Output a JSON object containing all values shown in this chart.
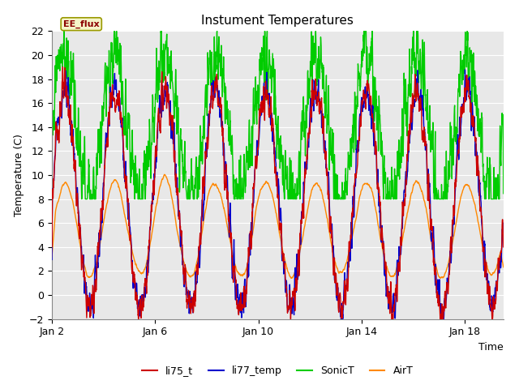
{
  "title": "Instument Temperatures",
  "xlabel": "Time",
  "ylabel": "Temperature (C)",
  "ylim": [
    -2,
    22
  ],
  "xlim_days": [
    2,
    19.5
  ],
  "plot_bg_color": "#e8e8e8",
  "fig_bg": "#ffffff",
  "line_colors": {
    "li75_t": "#cc0000",
    "li77_temp": "#0000cc",
    "SonicT": "#00cc00",
    "AirT": "#ff8800"
  },
  "annotation_text": "EE_flux",
  "x_ticks": [
    2,
    6,
    10,
    14,
    18
  ],
  "x_tick_labels": [
    "Jan 2",
    "Jan 6",
    "Jan 10",
    "Jan 14",
    "Jan 18"
  ],
  "yticks": [
    -2,
    0,
    2,
    4,
    6,
    8,
    10,
    12,
    14,
    16,
    18,
    20,
    22
  ],
  "grid_color": "#ffffff",
  "lw": 1.0,
  "title_fontsize": 11,
  "label_fontsize": 9,
  "tick_fontsize": 9,
  "legend_fontsize": 9
}
